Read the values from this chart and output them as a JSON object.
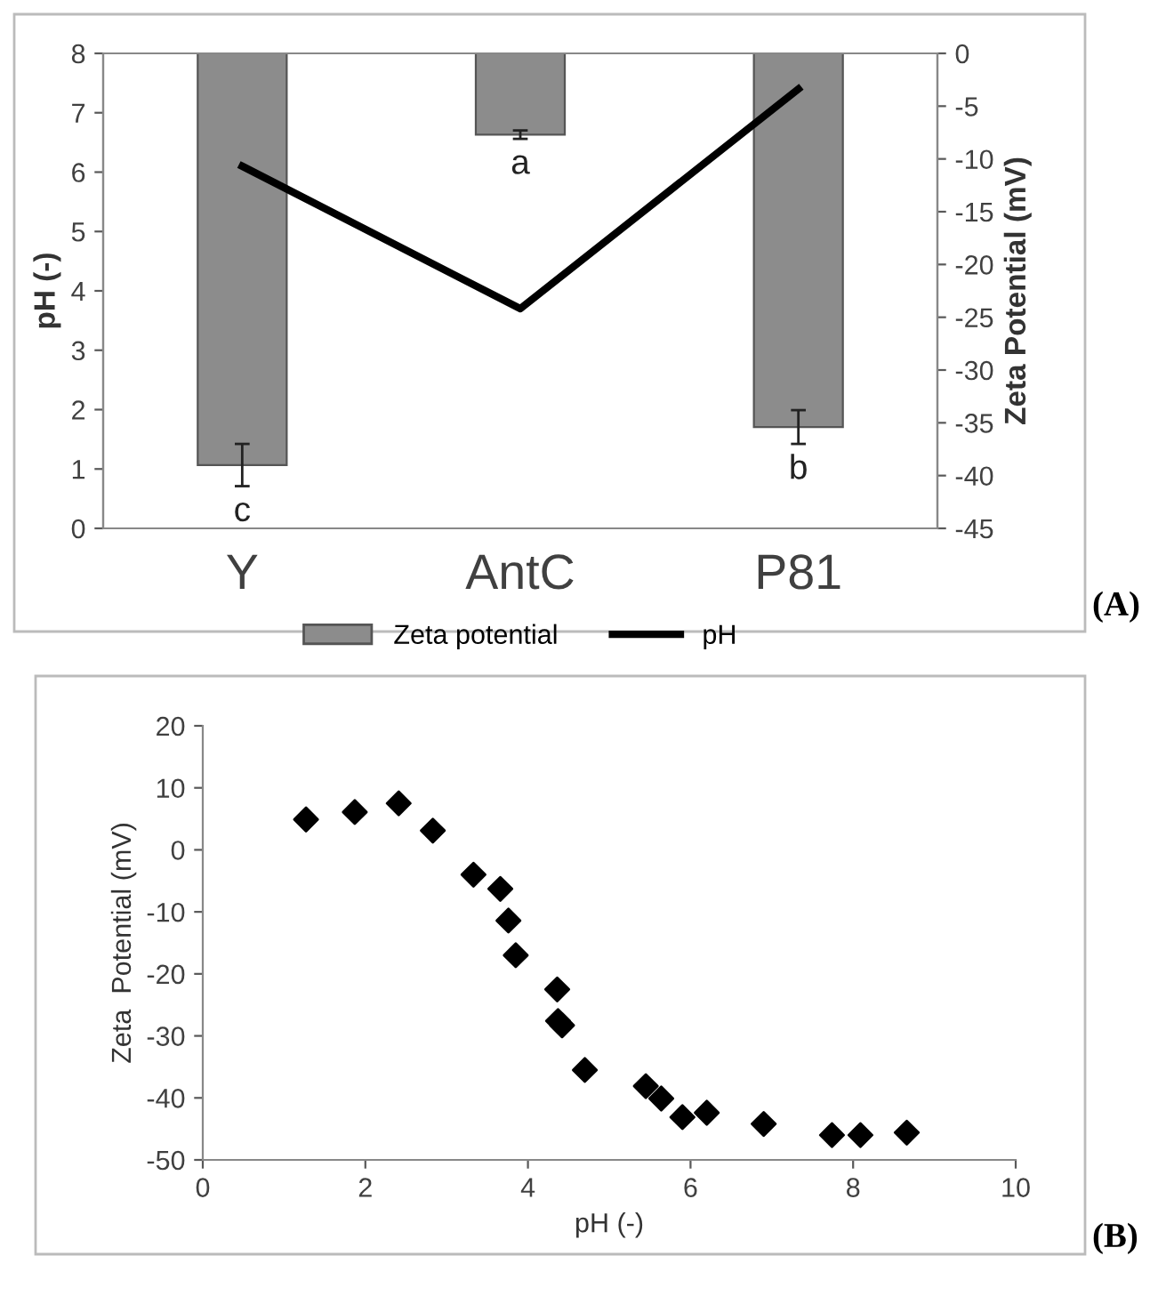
{
  "chart_data": [
    {
      "type": "bar",
      "ylabel": "pH (-)",
      "y2label": "Zeta Potential (mV)",
      "categories": [
        "Y",
        "AntC",
        "P81"
      ],
      "series": [
        {
          "name": "Zeta potential",
          "type": "bar",
          "axis": "y2",
          "color": "#8c8c8c",
          "values": [
            -39.0,
            -7.7,
            -35.4
          ],
          "errors": [
            2.0,
            0.4,
            1.6
          ]
        },
        {
          "name": "pH",
          "type": "line",
          "color": "#000000",
          "values": [
            6.1,
            3.7,
            7.4
          ]
        }
      ],
      "ylim": [
        0,
        8
      ],
      "yticks": [
        0,
        1,
        2,
        3,
        4,
        5,
        6,
        7,
        8
      ],
      "y2lim": [
        -45,
        0
      ],
      "y2ticks": [
        -45,
        -40,
        -35,
        -30,
        -25,
        -20,
        -15,
        -10,
        -5,
        0
      ],
      "annotations": [
        "c",
        "a",
        "b",
        "(A)"
      ],
      "legend": "bottom",
      "grid": false,
      "marker": "none",
      "line_style": "solid"
    },
    {
      "type": "scatter",
      "xlabel": "pH (-)",
      "ylabel": "Zeta  Potential (mV)",
      "x": [
        1.27,
        1.87,
        2.41,
        2.83,
        3.33,
        3.66,
        3.76,
        3.85,
        4.36,
        4.37,
        4.42,
        4.7,
        5.45,
        5.64,
        5.9,
        6.2,
        6.9,
        7.74,
        8.09,
        8.66
      ],
      "series": [
        {
          "color": "#000000",
          "values": [
            4.9,
            6.1,
            7.5,
            3.1,
            -4.0,
            -6.3,
            -11.4,
            -17.0,
            -22.5,
            -27.6,
            -28.3,
            -35.5,
            -38.1,
            -40.1,
            -43.1,
            -42.4,
            -44.2,
            -46.0,
            -46.0,
            -45.6
          ]
        }
      ],
      "xlim": [
        0,
        10
      ],
      "xticks": [
        0,
        2,
        4,
        6,
        8,
        10
      ],
      "ylim": [
        -50,
        20
      ],
      "yticks": [
        -50,
        -40,
        -30,
        -20,
        -10,
        0,
        10,
        20
      ],
      "annotations": [
        "(B)"
      ],
      "grid": false,
      "marker": "diamond",
      "legend": false
    }
  ]
}
